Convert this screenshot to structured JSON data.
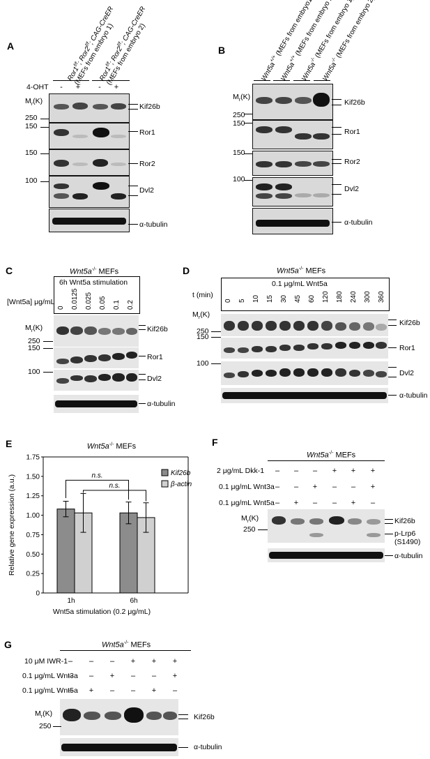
{
  "panels": {
    "A": {
      "label": "A",
      "header1_line1": "Ror1",
      "header1_sup1": "f/f",
      "header1_mid": "; Ror2",
      "header1_sup2": "f/f",
      "header1_tail": "; CAG-CreER",
      "header1_line2": "(MEFs from embryo 1)",
      "header2_line2": "(MEFs from embryo 2)",
      "treatment": "4-OHT",
      "signs": [
        "-",
        "+",
        "-",
        "+"
      ],
      "mr": "Mr(K)",
      "markers": [
        "250",
        "150",
        "150",
        "100"
      ],
      "bands": [
        "Kif26b",
        "Ror1",
        "Ror2",
        "Dvl2",
        "α-tubulin"
      ]
    },
    "B": {
      "label": "B",
      "lanes": [
        {
          "gene": "Wnt5a",
          "sup": "+/+",
          "desc": " (MEFs from embryo1)"
        },
        {
          "gene": "Wnt5a",
          "sup": "+/+",
          "desc": " (MEFs from embryo 2)"
        },
        {
          "gene": "Wnt5a",
          "sup": "-/-",
          "desc": " (MEFs from embryo 1)"
        },
        {
          "gene": "Wnt5a",
          "sup": "-/-",
          "desc": " (MEFs from embryo 2)"
        }
      ],
      "mr": "Mr(K)",
      "markers": [
        "250",
        "150",
        "150",
        "100"
      ],
      "bands": [
        "Kif26b",
        "Ror1",
        "Ror2",
        "Dvl2",
        "α-tubulin"
      ]
    },
    "C": {
      "label": "C",
      "title_gene": "Wnt5a",
      "title_sup": "-/-",
      "title_tail": " MEFs",
      "box_title": "6h Wnt5a stimulation",
      "conc_label": "[Wnt5a] μg/mL",
      "concs": [
        "0",
        "0.0125",
        "0.025",
        "0.05",
        "0.1",
        "0.2"
      ],
      "mr": "Mr(K)",
      "markers": [
        "250",
        "150",
        "100"
      ],
      "bands": [
        "Kif26b",
        "Ror1",
        "Dvl2",
        "α-tubulin"
      ]
    },
    "D": {
      "label": "D",
      "title_gene": "Wnt5a",
      "title_sup": "-/-",
      "title_tail": " MEFs",
      "box_title": "0.1 μg/mL Wnt5a",
      "t_label": "t (min)",
      "times": [
        "0",
        "5",
        "10",
        "15",
        "30",
        "45",
        "60",
        "120",
        "180",
        "240",
        "300",
        "360"
      ],
      "mr": "Mr(K)",
      "markers": [
        "250",
        "150",
        "100"
      ],
      "bands": [
        "Kif26b",
        "Ror1",
        "Dvl2",
        "α-tubulin"
      ]
    },
    "E": {
      "label": "E",
      "sig1": "n.s.",
      "sig2": "n.s."
    },
    "F": {
      "label": "F",
      "title_gene": "Wnt5a",
      "title_sup": "-/-",
      "title_tail": " MEFs",
      "rows": [
        {
          "label": "2 μg/mL Dkk-1",
          "signs": [
            "–",
            "–",
            "–",
            "+",
            "+",
            "+"
          ]
        },
        {
          "label": "0.1 μg/mL Wnt3a",
          "signs": [
            "–",
            "–",
            "+",
            "–",
            "–",
            "+"
          ]
        },
        {
          "label": "0.1 μg/mL Wnt5a",
          "signs": [
            "–",
            "+",
            "–",
            "–",
            "+",
            "–"
          ]
        }
      ],
      "mr": "Mr(K)",
      "markers": [
        "250"
      ],
      "bands": [
        "Kif26b",
        "p-Lrp6",
        "(S1490)",
        "α-tubulin"
      ]
    },
    "G": {
      "label": "G",
      "title_gene": "Wnt5a",
      "title_sup": "-/-",
      "title_tail": " MEFs",
      "rows": [
        {
          "label": "10 μM IWR-1",
          "signs": [
            "–",
            "–",
            "–",
            "+",
            "+",
            "+"
          ]
        },
        {
          "label": "0.1 μg/mL Wnt3a",
          "signs": [
            "–",
            "–",
            "+",
            "–",
            "–",
            "+"
          ]
        },
        {
          "label": "0.1 μg/mL Wnt5a",
          "signs": [
            "–",
            "+",
            "–",
            "–",
            "+",
            "–"
          ]
        }
      ],
      "mr": "Mr(K)",
      "markers": [
        "250"
      ],
      "bands": [
        "Kif26b",
        "α-tubulin"
      ]
    }
  },
  "chart_data": {
    "type": "bar",
    "title": "Wnt5a-/- MEFs",
    "title_gene": "Wnt5a",
    "title_sup": "-/-",
    "title_tail": " MEFs",
    "xlabel": "Wnt5a stimulation (0.2 μg/mL)",
    "ylabel": "Relative gene expression (a.u.)",
    "categories": [
      "1h",
      "6h"
    ],
    "series": [
      {
        "name": "Kif26b",
        "values": [
          1.08,
          1.03
        ],
        "errors": [
          0.1,
          0.14
        ],
        "color": "#8c8c8c"
      },
      {
        "name": "β-actin",
        "values": [
          1.03,
          0.97
        ],
        "errors": [
          0.25,
          0.19
        ],
        "color": "#d0d0d0"
      }
    ],
    "ylim": [
      0,
      1.75
    ],
    "yticks": [
      "0",
      "0.25",
      "0.50",
      "0.75",
      "1.00",
      "1.25",
      "1.50",
      "1.75"
    ],
    "legend_position": "top-right",
    "grid": false
  }
}
